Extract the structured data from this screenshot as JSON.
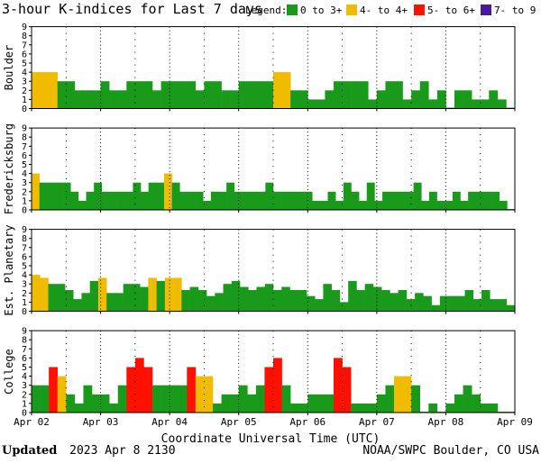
{
  "title": "3-hour K-indices for Last 7 days",
  "legend": {
    "label": "Legend:",
    "items": [
      {
        "label": "0 to 3+",
        "color": "#1a9a1a"
      },
      {
        "label": "4- to 4+",
        "color": "#f0bc00"
      },
      {
        "label": "5- to 6+",
        "color": "#ff1000"
      },
      {
        "label": "7- to 9",
        "color": "#4a1a9a"
      }
    ]
  },
  "colors": {
    "low": "#1a9a1a",
    "mid": "#f0bc00",
    "high": "#ff1000",
    "extreme": "#4a1a9a",
    "grid": "#000000"
  },
  "x_axis": {
    "title": "Coordinate Universal Time (UTC)",
    "tick_labels": [
      "Apr 02",
      "Apr 03",
      "Apr 04",
      "Apr 05",
      "Apr 06",
      "Apr 07",
      "Apr 08",
      "Apr 09"
    ]
  },
  "footer": {
    "updated_label": "Updated",
    "updated_value": "2023 Apr  8 2130",
    "credit": "NOAA/SWPC Boulder, CO USA"
  },
  "chart_data": [
    {
      "type": "bar",
      "title": "Boulder",
      "ylabel": "Boulder",
      "ylim": [
        0,
        9
      ],
      "yticks": [
        "0",
        "1",
        "2",
        "3",
        "4",
        "5",
        "6",
        "7",
        "8",
        "9"
      ],
      "values": [
        4,
        4,
        4,
        3,
        3,
        2,
        2,
        2,
        3,
        2,
        2,
        3,
        3,
        3,
        2,
        3,
        3,
        3,
        3,
        2,
        3,
        3,
        2,
        2,
        3,
        3,
        3,
        3,
        4,
        4,
        2,
        2,
        1,
        1,
        2,
        3,
        3,
        3,
        3,
        1,
        2,
        3,
        3,
        1,
        2,
        3,
        1,
        2,
        0,
        2,
        2,
        1,
        1,
        2,
        1,
        0
      ]
    },
    {
      "type": "bar",
      "title": "Fredericksburg",
      "ylabel": "Fredericksburg",
      "ylim": [
        0,
        9
      ],
      "yticks": [
        "0",
        "1",
        "2",
        "3",
        "4",
        "5",
        "6",
        "7",
        "8",
        "9"
      ],
      "values": [
        4,
        3,
        3,
        3,
        3,
        2,
        1,
        2,
        3,
        2,
        2,
        2,
        2,
        3,
        2,
        3,
        3,
        4,
        3,
        2,
        2,
        2,
        1,
        2,
        2,
        3,
        2,
        2,
        2,
        2,
        3,
        2,
        2,
        2,
        2,
        2,
        1,
        1,
        2,
        1,
        3,
        2,
        1,
        3,
        1,
        2,
        2,
        2,
        2,
        3,
        1,
        2,
        1,
        1,
        2,
        1,
        2,
        2,
        2,
        2,
        1,
        0
      ]
    },
    {
      "type": "bar",
      "title": "Est. Planetary",
      "ylabel": "Est. Planetary",
      "ylim": [
        0,
        9
      ],
      "yticks": [
        "0",
        "1",
        "2",
        "3",
        "4",
        "5",
        "6",
        "7",
        "8",
        "9"
      ],
      "values": [
        4,
        3.67,
        3,
        3,
        2.33,
        1.33,
        2,
        3.33,
        3.67,
        2,
        2,
        3,
        3,
        2.67,
        3.67,
        3.33,
        3.67,
        3.67,
        2.33,
        2.67,
        2.33,
        1.67,
        2,
        3,
        3.33,
        2.67,
        2.33,
        2.67,
        3,
        2.33,
        2.67,
        2.33,
        2.33,
        1.67,
        1.33,
        3,
        2.33,
        1,
        3.33,
        2.33,
        3,
        2.67,
        2.33,
        2,
        2.33,
        1.33,
        2,
        1.67,
        0.67,
        1.67,
        1.67,
        1.67,
        2.33,
        1.33,
        2.33,
        1.33,
        1.33,
        0.67
      ]
    },
    {
      "type": "bar",
      "title": "College",
      "ylabel": "College",
      "ylim": [
        0,
        9
      ],
      "yticks": [
        "0",
        "1",
        "2",
        "3",
        "4",
        "5",
        "6",
        "7",
        "8",
        "9"
      ],
      "values": [
        3,
        3,
        5,
        4,
        2,
        1,
        3,
        2,
        2,
        1,
        3,
        5,
        6,
        5,
        3,
        3,
        3,
        3,
        5,
        4,
        4,
        1,
        2,
        2,
        3,
        2,
        3,
        5,
        6,
        3,
        1,
        1,
        2,
        2,
        2,
        6,
        5,
        1,
        1,
        1,
        2,
        3,
        4,
        4,
        3,
        0,
        1,
        0,
        1,
        2,
        3,
        2,
        1,
        1,
        0,
        0
      ]
    }
  ]
}
